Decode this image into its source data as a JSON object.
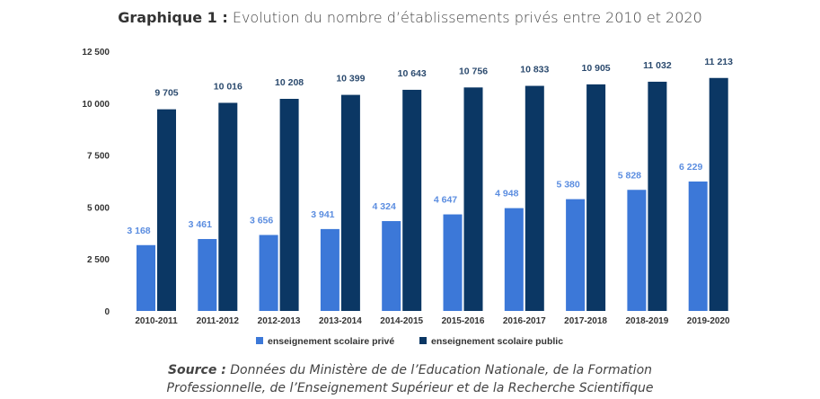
{
  "title": {
    "prefix": "Graphique 1 :",
    "text": "Evolution du nombre d’établissements privés entre 2010 et 2020"
  },
  "source": {
    "label": "Source :",
    "line1": "Données du Ministère de de l’Education Nationale, de la Formation",
    "line2": "Professionnelle, de l’Enseignement Supérieur et de la Recherche Scientifique"
  },
  "chart_data": {
    "type": "bar",
    "categories": [
      "2010-2011",
      "2011-2012",
      "2012-2013",
      "2013-2014",
      "2014-2015",
      "2015-2016",
      "2016-2017",
      "2017-2018",
      "2018-2019",
      "2019-2020"
    ],
    "series": [
      {
        "name": "enseignement scolaire privé",
        "color": "#3c78d8",
        "values": [
          3168,
          3461,
          3656,
          3941,
          4324,
          4647,
          4948,
          5380,
          5828,
          6229
        ],
        "labels": [
          "3 168",
          "3 461",
          "3 656",
          "3 941",
          "4 324",
          "4 647",
          "4 948",
          "5 380",
          "5 828",
          "6 229"
        ]
      },
      {
        "name": "enseignement scolaire public",
        "color": "#0b3764",
        "values": [
          9705,
          10016,
          10208,
          10399,
          10643,
          10756,
          10833,
          10905,
          11032,
          11213
        ],
        "labels": [
          "9 705",
          "10 016",
          "10 208",
          "10 399",
          "10 643",
          "10 756",
          "10 833",
          "10 905",
          "11 032",
          "11 213"
        ]
      }
    ],
    "ylim": [
      0,
      12500
    ],
    "yticks": [
      0,
      2500,
      5000,
      7500,
      10000,
      12500
    ],
    "ytick_labels": [
      "0",
      "2 500",
      "5 000",
      "7 500",
      "10 000",
      "12 500"
    ],
    "grid": false,
    "legend": "bottom"
  }
}
